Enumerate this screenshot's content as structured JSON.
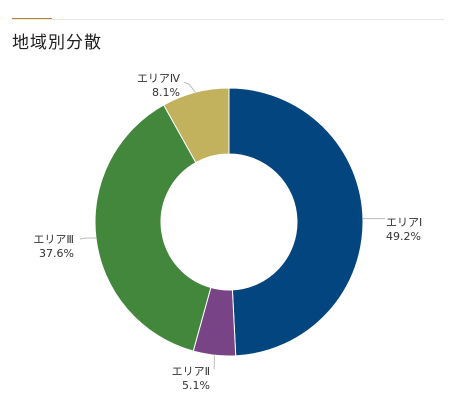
{
  "section": {
    "title": "地域別分散",
    "accent_color": "#b8862b"
  },
  "chart_data": {
    "type": "pie",
    "donut": true,
    "title": "地域別分散",
    "slices": [
      {
        "label": "エリアⅠ",
        "value": 49.2,
        "value_text": "49.2%",
        "color": "#03467f"
      },
      {
        "label": "エリアⅡ",
        "value": 5.1,
        "value_text": "5.1%",
        "color": "#784486"
      },
      {
        "label": "エリアⅢ",
        "value": 37.6,
        "value_text": "37.6%",
        "color": "#42873c"
      },
      {
        "label": "エリアⅣ",
        "value": 8.1,
        "value_text": "8.1%",
        "color": "#c2b15d"
      }
    ]
  }
}
